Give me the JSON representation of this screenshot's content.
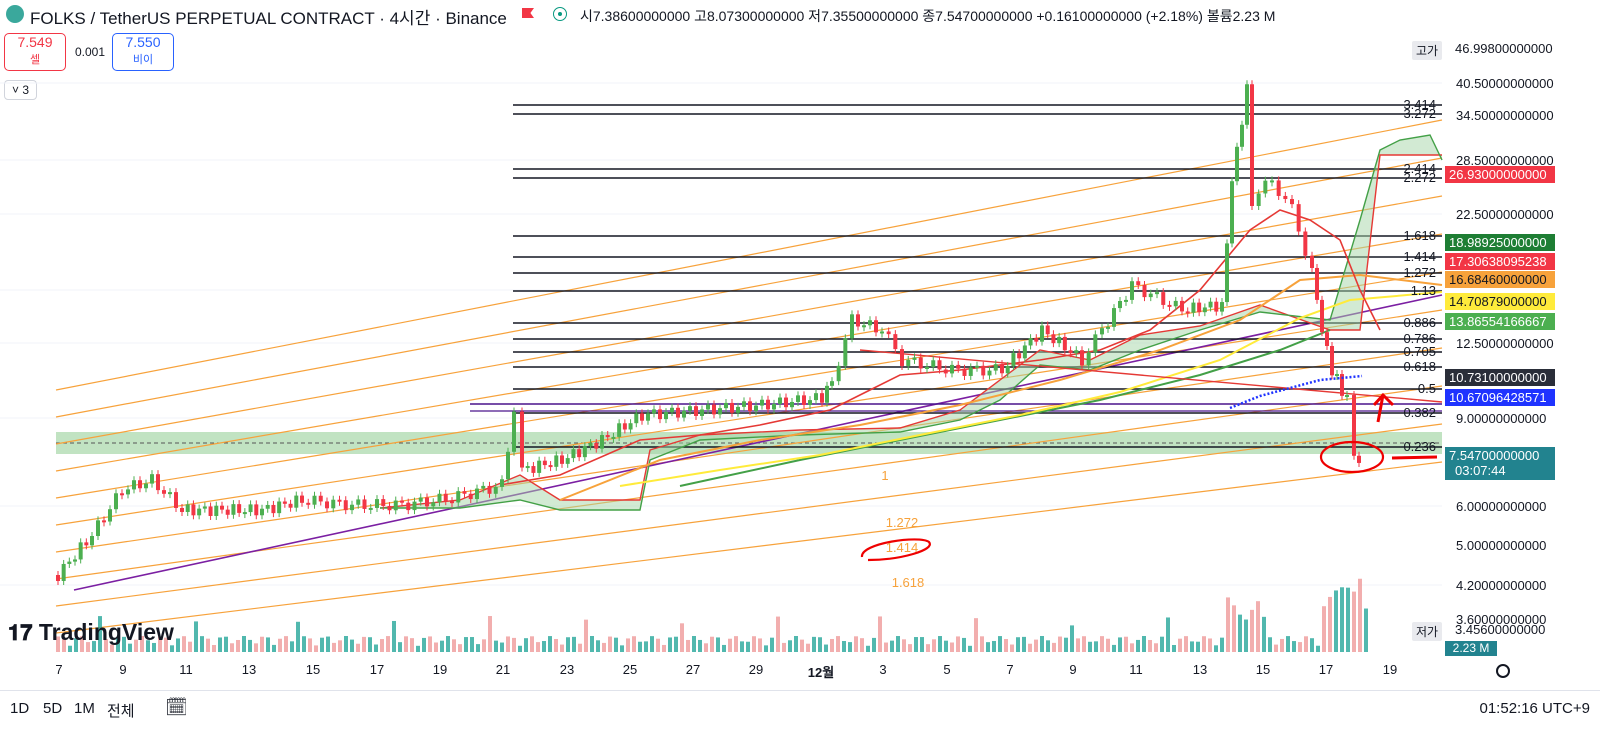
{
  "header": {
    "title": "FOLKS / TetherUS PERPETUAL CONTRACT · 4시간 · Binance",
    "ohlc": "시7.38600000000  고8.07300000000  저7.35500000000  종7.54700000000  +0.16100000000 (+2.18%)  볼륨2.23 M"
  },
  "trade": {
    "sell_price": "7.549",
    "sell_label": "셀",
    "spread": "0.001",
    "buy_price": "7.550",
    "buy_label": "비이"
  },
  "indicators_collapsed": "3",
  "price_axis": {
    "ticks": [
      "40.50000000000",
      "34.50000000000",
      "28.50000000000",
      "22.50000000000",
      "12.50000000000",
      "9.00000000000",
      "6.00000000000",
      "5.00000000000",
      "4.20000000000",
      "3.60000000000"
    ],
    "high_label": "고가",
    "high_value": "46.99800000000",
    "low_label": "저가",
    "low_value": "3.45600000000",
    "labels": [
      {
        "text": "26.93000000000",
        "bg": "#f23645",
        "fg": "#ffffff"
      },
      {
        "text": "18.98925000000",
        "bg": "#1e7e34",
        "fg": "#ffffff"
      },
      {
        "text": "17.30638095238",
        "bg": "#f23645",
        "fg": "#ffffff"
      },
      {
        "text": "16.68460000000",
        "bg": "#f7a23b",
        "fg": "#131722"
      },
      {
        "text": "14.70879000000",
        "bg": "#ffeb3b",
        "fg": "#131722"
      },
      {
        "text": "13.86554166667",
        "bg": "#4caf50",
        "fg": "#ffffff"
      },
      {
        "text": "10.73100000000",
        "bg": "#2a2e39",
        "fg": "#ffffff"
      },
      {
        "text": "10.67096428571",
        "bg": "#1f33ff",
        "fg": "#ffffff"
      },
      {
        "text": "7.54700000000",
        "bg": "#22838f",
        "fg": "#ffffff"
      }
    ],
    "countdown": "03:07:44",
    "volume_value": "2.23 M"
  },
  "fib_levels": [
    "3.414",
    "3.272",
    "2.414",
    "2.272",
    "1.618",
    "1.414",
    "1.272",
    "1.13",
    "0.886",
    "0.786",
    "0.705",
    "0.618",
    "0.5",
    "0.382",
    "0.236"
  ],
  "channel_levels": [
    "1",
    "1.272",
    "1.414",
    "1.618"
  ],
  "x_axis": [
    "7",
    "9",
    "11",
    "13",
    "15",
    "17",
    "19",
    "21",
    "23",
    "25",
    "27",
    "29",
    "12월",
    "3",
    "5",
    "7",
    "9",
    "11",
    "13",
    "15",
    "17",
    "19"
  ],
  "logo": "TradingView",
  "bottom": {
    "ranges": [
      "1D",
      "5D",
      "1M",
      "전체"
    ],
    "clock": "01:52:16 UTC+9"
  },
  "colors": {
    "up": "#4caf50",
    "down": "#f23645",
    "fib": "#131722",
    "channel": "#f7a23b",
    "volume": "#22838f"
  }
}
